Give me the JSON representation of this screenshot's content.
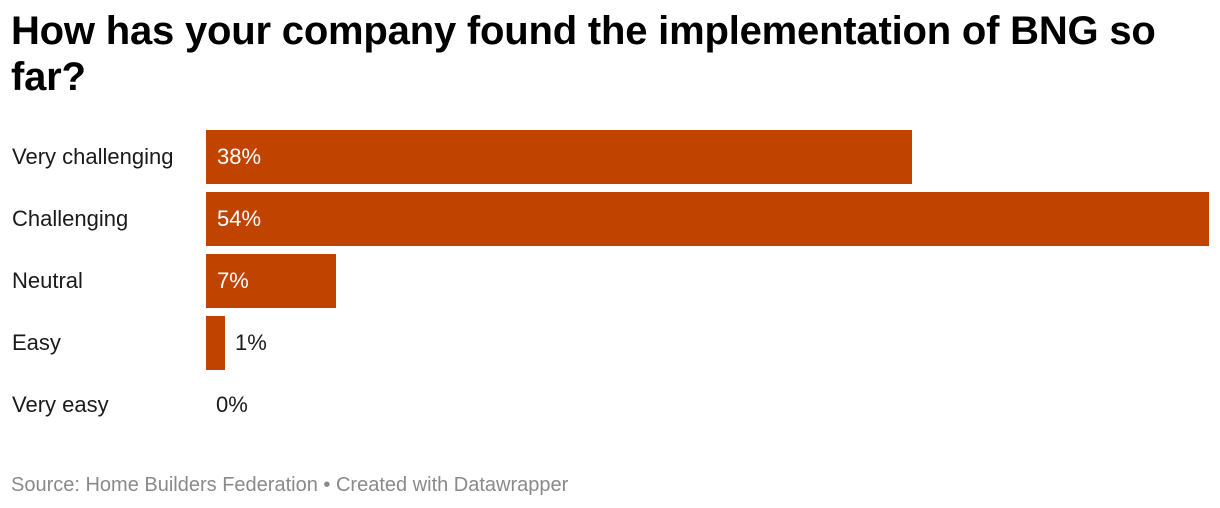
{
  "title": "How has your company found the implementation of BNG so far?",
  "footer": {
    "source": "Source: Home Builders Federation",
    "separator": "•",
    "credit": "Created with Datawrapper"
  },
  "colors": {
    "bar": "#c04400",
    "value_inside": "#ffffff",
    "value_outside": "#1a1a1a",
    "footer": "#8a8a8a"
  },
  "chart_data": {
    "type": "bar",
    "orientation": "horizontal",
    "title": "How has your company found the implementation of BNG so far?",
    "categories": [
      "Very challenging",
      "Challenging",
      "Neutral",
      "Easy",
      "Very easy"
    ],
    "values": [
      38,
      54,
      7,
      1,
      0
    ],
    "value_labels": [
      "38%",
      "54%",
      "7%",
      "1%",
      "0%"
    ],
    "unit": "%",
    "xlim": [
      0,
      54
    ],
    "grid": false,
    "legend": "none"
  }
}
